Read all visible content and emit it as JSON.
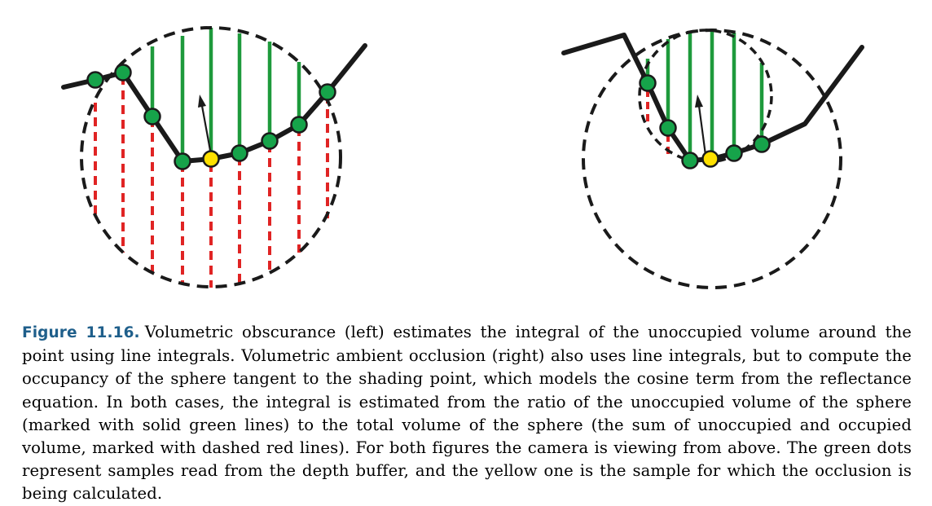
{
  "caption": {
    "label": "Figure 11.16.",
    "text": "Volumetric obscurance (left) estimates the integral of the unoccupied volume around the point using line integrals. Volumetric ambient occlusion (right) also uses line integrals, but to compute the occupancy of the sphere tangent to the shading point, which models the cosine term from the reflectance equation. In both cases, the integral is estimated from the ratio of the unoccupied volume of the sphere (marked with solid green lines) to the total volume of the sphere (the sum of unoccupied and occupied volume, marked with dashed red lines). For both figures the camera is viewing from above. The green dots represent samples read from the depth buffer, and the yellow one is the sample for which the occlusion is being calculated."
  },
  "colors": {
    "label": "#1f5f8b",
    "unoccupied_line": "#1e9a3c",
    "occupied_line": "#e02424",
    "sample_dot": "#16a34a",
    "shading_point": "#ffe000",
    "surface": "#1a1a1a"
  }
}
